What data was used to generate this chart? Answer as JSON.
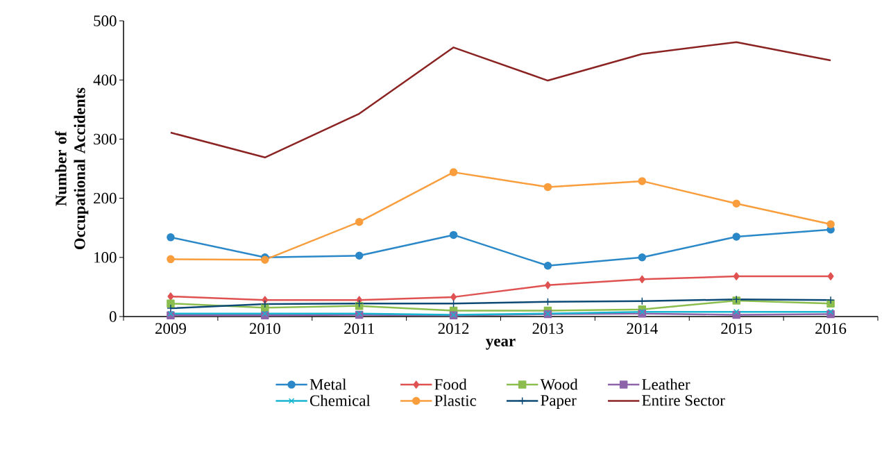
{
  "chart_data": {
    "type": "line",
    "xlabel": "year",
    "ylabel": "Number of Occupational Accidents",
    "categories": [
      "2009",
      "2010",
      "2011",
      "2012",
      "2013",
      "2014",
      "2015",
      "2016"
    ],
    "ylim": [
      0,
      500
    ],
    "yticks": [
      0,
      100,
      200,
      300,
      400,
      500
    ],
    "grid": false,
    "legend": "bottom",
    "series": [
      {
        "name": "Metal",
        "color": "#2b88c8",
        "marker": "circle",
        "values": [
          134,
          100,
          103,
          138,
          86,
          100,
          135,
          147
        ]
      },
      {
        "name": "Food",
        "color": "#e05252",
        "marker": "diamond",
        "values": [
          34,
          28,
          28,
          33,
          53,
          63,
          68,
          68
        ]
      },
      {
        "name": "Wood",
        "color": "#8bbd4f",
        "marker": "square",
        "values": [
          22,
          15,
          18,
          10,
          10,
          12,
          27,
          22
        ]
      },
      {
        "name": "Leather",
        "color": "#8d64aa",
        "marker": "square",
        "values": [
          2,
          2,
          3,
          2,
          4,
          5,
          3,
          4
        ]
      },
      {
        "name": "Chemical",
        "color": "#17b5cf",
        "marker": "cross",
        "values": [
          5,
          5,
          5,
          3,
          5,
          8,
          8,
          8
        ]
      },
      {
        "name": "Plastic",
        "color": "#f99d3d",
        "marker": "circle",
        "values": [
          97,
          96,
          160,
          244,
          219,
          229,
          191,
          156
        ]
      },
      {
        "name": "Paper",
        "color": "#0d4a75",
        "marker": "plus",
        "values": [
          14,
          21,
          22,
          22,
          25,
          26,
          29,
          28
        ]
      },
      {
        "name": "Entire Sector",
        "color": "#8b2323",
        "marker": "none",
        "values": [
          311,
          269,
          343,
          455,
          399,
          444,
          464,
          433
        ]
      }
    ]
  }
}
